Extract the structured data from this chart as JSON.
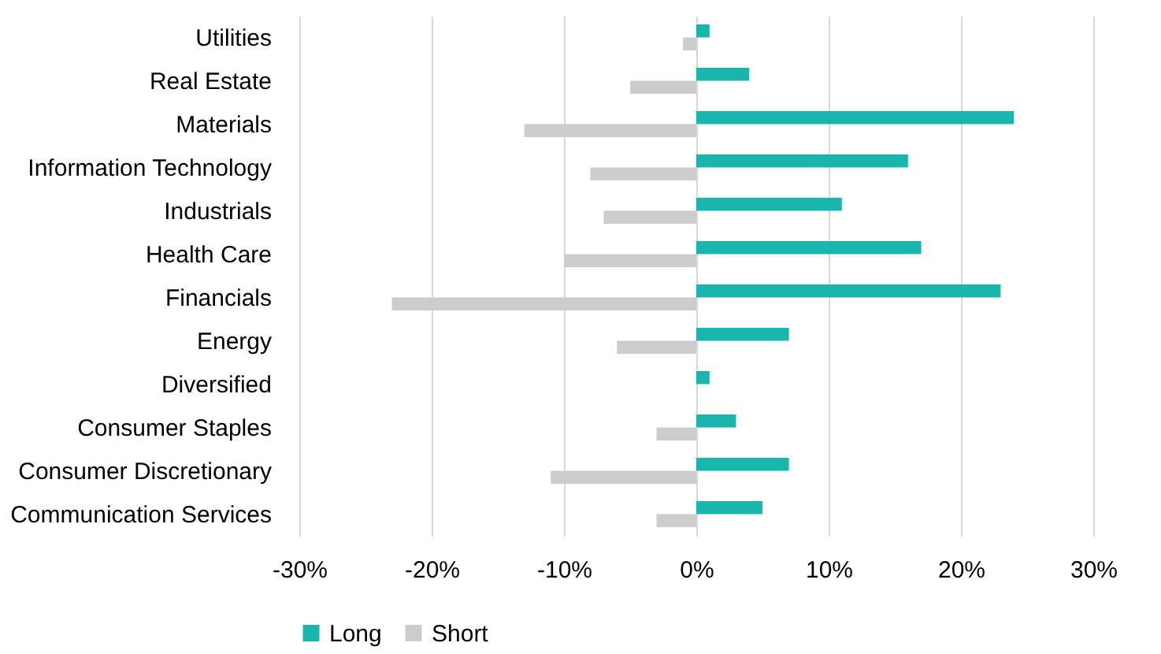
{
  "chart_data": {
    "type": "bar",
    "orientation": "horizontal",
    "categories": [
      "Utilities",
      "Real Estate",
      "Materials",
      "Information Technology",
      "Industrials",
      "Health Care",
      "Financials",
      "Energy",
      "Diversified",
      "Consumer Staples",
      "Consumer Discretionary",
      "Communication Services"
    ],
    "series": [
      {
        "name": "Long",
        "color": "#1ab5ad",
        "values": [
          1,
          4,
          24,
          16,
          11,
          17,
          23,
          7,
          1,
          3,
          7,
          5
        ]
      },
      {
        "name": "Short",
        "color": "#cccccc",
        "values": [
          -1,
          -5,
          -13,
          -8,
          -7,
          -10,
          -23,
          -6,
          0,
          -3,
          -11,
          -3
        ]
      }
    ],
    "xlim": [
      -30,
      30
    ],
    "xticks": [
      {
        "value": -30,
        "label": "-30%"
      },
      {
        "value": -20,
        "label": "-20%"
      },
      {
        "value": -10,
        "label": "-10%"
      },
      {
        "value": 0,
        "label": "0%"
      },
      {
        "value": 10,
        "label": "10%"
      },
      {
        "value": 20,
        "label": "20%"
      },
      {
        "value": 30,
        "label": "30%"
      }
    ],
    "grid": "x",
    "legend": "bottom"
  }
}
